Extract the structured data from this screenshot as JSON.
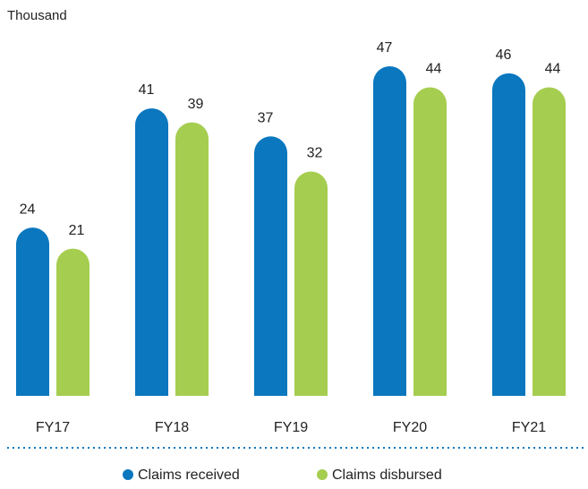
{
  "chart_data": {
    "type": "bar",
    "unit_label": "Thousand",
    "categories": [
      "FY17",
      "FY18",
      "FY19",
      "FY20",
      "FY21"
    ],
    "series": [
      {
        "name": "Claims received",
        "color": "#0a77bf",
        "values": [
          24,
          41,
          37,
          47,
          46
        ]
      },
      {
        "name": "Claims disbursed",
        "color": "#a5cd4f",
        "values": [
          21,
          39,
          32,
          44,
          44
        ]
      }
    ],
    "legend": "bottom"
  }
}
